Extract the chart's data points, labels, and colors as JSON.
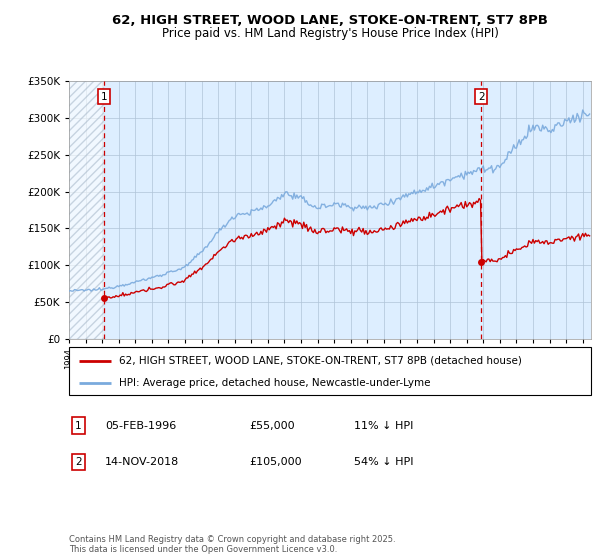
{
  "title_line1": "62, HIGH STREET, WOOD LANE, STOKE-ON-TRENT, ST7 8PB",
  "title_line2": "Price paid vs. HM Land Registry's House Price Index (HPI)",
  "legend_line1": "62, HIGH STREET, WOOD LANE, STOKE-ON-TRENT, ST7 8PB (detached house)",
  "legend_line2": "HPI: Average price, detached house, Newcastle-under-Lyme",
  "footer": "Contains HM Land Registry data © Crown copyright and database right 2025.\nThis data is licensed under the Open Government Licence v3.0.",
  "purchase1_date": "05-FEB-1996",
  "purchase1_price": 55000,
  "purchase1_label": "1",
  "purchase1_year": 1996.09,
  "purchase2_date": "14-NOV-2018",
  "purchase2_price": 105000,
  "purchase2_label": "2",
  "purchase2_year": 2018.87,
  "hpi_color": "#7aaadd",
  "property_color": "#cc0000",
  "background_color": "#ddeeff",
  "hatch_color": "#aabbcc",
  "grid_color": "#b0c4d8",
  "xmin": 1994,
  "xmax": 2025.5,
  "ymin": 0,
  "ymax": 350000,
  "yticks": [
    0,
    50000,
    100000,
    150000,
    200000,
    250000,
    300000,
    350000
  ],
  "ytick_labels": [
    "£0",
    "£50K",
    "£100K",
    "£150K",
    "£200K",
    "£250K",
    "£300K",
    "£350K"
  ],
  "hpi_base": {
    "1994": 65000,
    "1995": 66000,
    "1996": 67000,
    "1997": 72000,
    "1998": 77000,
    "1999": 83000,
    "2000": 90000,
    "2001": 97000,
    "2002": 118000,
    "2003": 145000,
    "2004": 168000,
    "2005": 172000,
    "2006": 180000,
    "2007": 198000,
    "2008": 190000,
    "2009": 178000,
    "2010": 183000,
    "2011": 180000,
    "2012": 177000,
    "2013": 183000,
    "2014": 192000,
    "2015": 200000,
    "2016": 207000,
    "2017": 218000,
    "2018": 225000,
    "2019": 230000,
    "2020": 233000,
    "2021": 262000,
    "2022": 288000,
    "2023": 283000,
    "2024": 295000,
    "2025": 305000
  }
}
